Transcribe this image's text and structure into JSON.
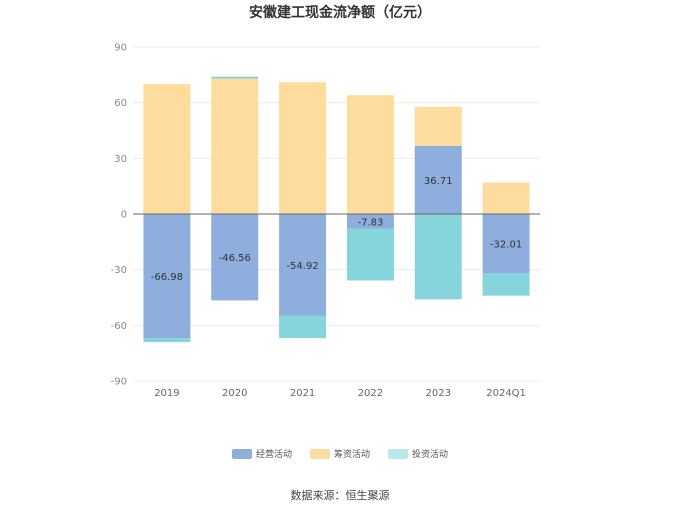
{
  "chart_data": {
    "type": "bar",
    "title": "安徽建工现金流净额（亿元）",
    "categories": [
      "2019",
      "2020",
      "2021",
      "2022",
      "2023",
      "2024Q1"
    ],
    "ylim": [
      -90,
      90
    ],
    "yticks": [
      90,
      60,
      30,
      0,
      -30,
      -60,
      -90
    ],
    "grid": true,
    "legend_position": "bottom",
    "series": [
      {
        "name": "经营活动",
        "color": "#8eaede",
        "values": [
          -66.98,
          -46.56,
          -54.92,
          -7.83,
          36.71,
          -32.01
        ]
      },
      {
        "name": "筹资活动",
        "color": "#fddc9d",
        "values": [
          70,
          73,
          71,
          64,
          21,
          17
        ]
      },
      {
        "name": "投资活动",
        "color": "#86d4dc",
        "values": [
          -2,
          1,
          -12,
          -28,
          -46,
          -12
        ]
      }
    ],
    "data_labels": [
      "-66.98",
      "-46.56",
      "-54.92",
      "-7.83",
      "36.71",
      "-32.01"
    ],
    "source": "数据来源：恒生聚源"
  }
}
